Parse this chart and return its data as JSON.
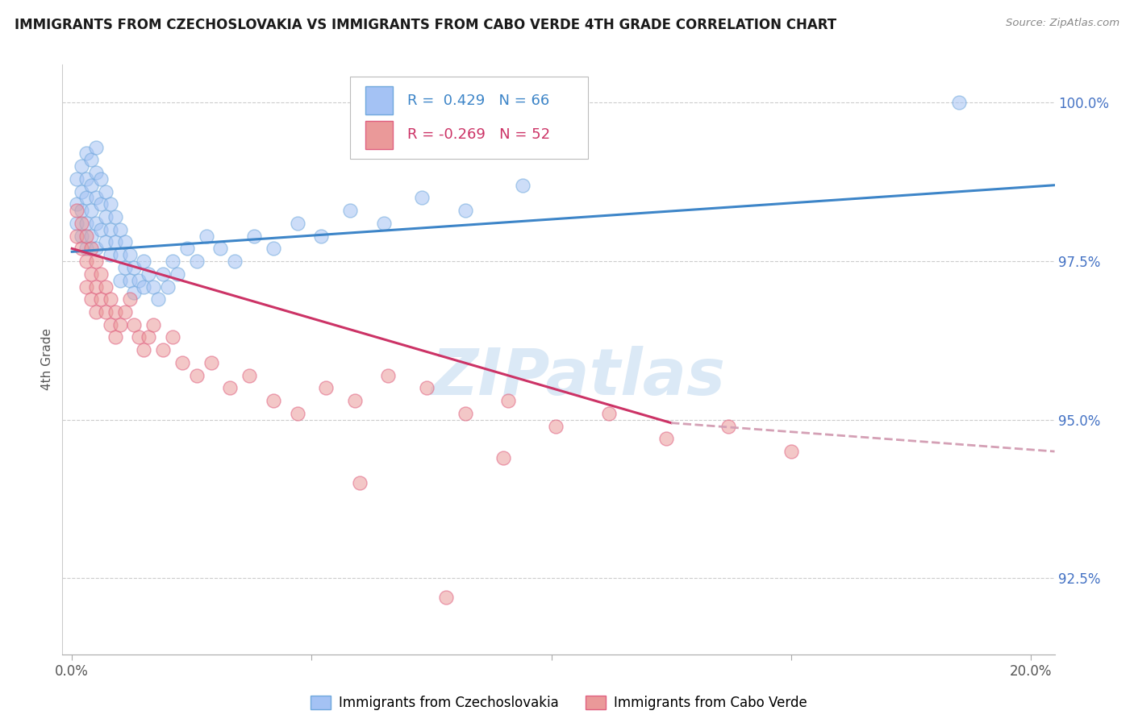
{
  "title": "IMMIGRANTS FROM CZECHOSLOVAKIA VS IMMIGRANTS FROM CABO VERDE 4TH GRADE CORRELATION CHART",
  "source": "Source: ZipAtlas.com",
  "ylabel": "4th Grade",
  "xlim": [
    -0.002,
    0.205
  ],
  "ylim": [
    0.913,
    1.006
  ],
  "yticks": [
    0.925,
    0.95,
    0.975,
    1.0
  ],
  "ytick_labels": [
    "92.5%",
    "95.0%",
    "97.5%",
    "100.0%"
  ],
  "xticks": [
    0.0,
    0.05,
    0.1,
    0.15,
    0.2
  ],
  "xtick_labels_visible": [
    "0.0%",
    "",
    "",
    "",
    "20.0%"
  ],
  "r_czech": 0.429,
  "n_czech": 66,
  "r_cabo": -0.269,
  "n_cabo": 52,
  "legend_label_czech": "Immigrants from Czechoslovakia",
  "legend_label_cabo": "Immigrants from Cabo Verde",
  "color_czech_fill": "#a4c2f4",
  "color_czech_edge": "#6fa8dc",
  "color_cabo_fill": "#ea9999",
  "color_cabo_edge": "#e06080",
  "color_czech_line": "#3d85c8",
  "color_cabo_line": "#cc3366",
  "color_cabo_line_dash": "#d4a0b5",
  "background_color": "#ffffff",
  "watermark_color": "#cfe2f3",
  "title_fontsize": 12,
  "tick_fontsize": 12,
  "legend_fontsize": 12,
  "ytick_color": "#4472c4",
  "czech_x": [
    0.001,
    0.001,
    0.001,
    0.002,
    0.002,
    0.002,
    0.002,
    0.003,
    0.003,
    0.003,
    0.003,
    0.003,
    0.004,
    0.004,
    0.004,
    0.004,
    0.005,
    0.005,
    0.005,
    0.005,
    0.005,
    0.006,
    0.006,
    0.006,
    0.007,
    0.007,
    0.007,
    0.008,
    0.008,
    0.008,
    0.009,
    0.009,
    0.01,
    0.01,
    0.01,
    0.011,
    0.011,
    0.012,
    0.012,
    0.013,
    0.013,
    0.014,
    0.015,
    0.015,
    0.016,
    0.017,
    0.018,
    0.019,
    0.02,
    0.021,
    0.022,
    0.024,
    0.026,
    0.028,
    0.031,
    0.034,
    0.038,
    0.042,
    0.047,
    0.052,
    0.058,
    0.065,
    0.073,
    0.082,
    0.094,
    0.185
  ],
  "czech_y": [
    0.988,
    0.984,
    0.981,
    0.99,
    0.986,
    0.983,
    0.979,
    0.992,
    0.988,
    0.985,
    0.981,
    0.977,
    0.991,
    0.987,
    0.983,
    0.979,
    0.993,
    0.989,
    0.985,
    0.981,
    0.977,
    0.988,
    0.984,
    0.98,
    0.986,
    0.982,
    0.978,
    0.984,
    0.98,
    0.976,
    0.982,
    0.978,
    0.98,
    0.976,
    0.972,
    0.978,
    0.974,
    0.976,
    0.972,
    0.974,
    0.97,
    0.972,
    0.975,
    0.971,
    0.973,
    0.971,
    0.969,
    0.973,
    0.971,
    0.975,
    0.973,
    0.977,
    0.975,
    0.979,
    0.977,
    0.975,
    0.979,
    0.977,
    0.981,
    0.979,
    0.983,
    0.981,
    0.985,
    0.983,
    0.987,
    1.0
  ],
  "cabo_x": [
    0.001,
    0.001,
    0.002,
    0.002,
    0.003,
    0.003,
    0.003,
    0.004,
    0.004,
    0.004,
    0.005,
    0.005,
    0.005,
    0.006,
    0.006,
    0.007,
    0.007,
    0.008,
    0.008,
    0.009,
    0.009,
    0.01,
    0.011,
    0.012,
    0.013,
    0.014,
    0.015,
    0.016,
    0.017,
    0.019,
    0.021,
    0.023,
    0.026,
    0.029,
    0.033,
    0.037,
    0.042,
    0.047,
    0.053,
    0.059,
    0.066,
    0.074,
    0.082,
    0.091,
    0.101,
    0.112,
    0.124,
    0.137,
    0.15,
    0.09,
    0.06,
    0.078
  ],
  "cabo_y": [
    0.983,
    0.979,
    0.981,
    0.977,
    0.979,
    0.975,
    0.971,
    0.977,
    0.973,
    0.969,
    0.975,
    0.971,
    0.967,
    0.973,
    0.969,
    0.971,
    0.967,
    0.969,
    0.965,
    0.967,
    0.963,
    0.965,
    0.967,
    0.969,
    0.965,
    0.963,
    0.961,
    0.963,
    0.965,
    0.961,
    0.963,
    0.959,
    0.957,
    0.959,
    0.955,
    0.957,
    0.953,
    0.951,
    0.955,
    0.953,
    0.957,
    0.955,
    0.951,
    0.953,
    0.949,
    0.951,
    0.947,
    0.949,
    0.945,
    0.944,
    0.94,
    0.922
  ]
}
